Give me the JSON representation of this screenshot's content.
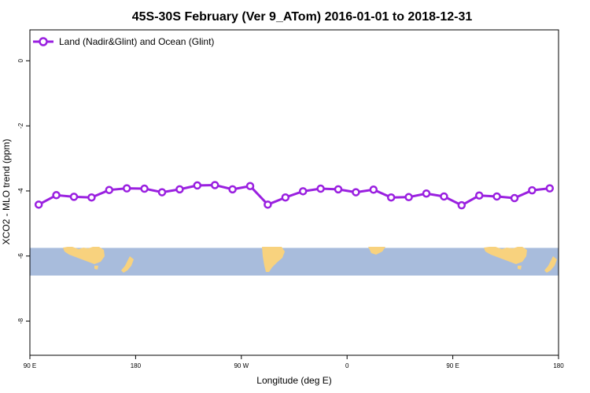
{
  "chart_data": {
    "type": "line",
    "title": "45S-30S February (Ver 9_ATom)   2016-01-01 to 2018-12-31",
    "xlabel": "Longitude (deg E)",
    "ylabel": "XCO2 - MLO trend (ppm)",
    "xlim": [
      90,
      540
    ],
    "ylim": [
      -9.05,
      0.95
    ],
    "x_ticks": [
      {
        "value": 90,
        "label": "90 E"
      },
      {
        "value": 180,
        "label": "180"
      },
      {
        "value": 270,
        "label": "90 W"
      },
      {
        "value": 360,
        "label": "0"
      },
      {
        "value": 450,
        "label": "90 E"
      },
      {
        "value": 540,
        "label": "180"
      }
    ],
    "y_ticks": [
      {
        "value": 0,
        "label": "0"
      },
      {
        "value": -2,
        "label": "-2"
      },
      {
        "value": -4,
        "label": "-4"
      },
      {
        "value": -6,
        "label": "-6"
      },
      {
        "value": -8,
        "label": "-8"
      }
    ],
    "legend_position": "top-left",
    "grid": false,
    "series": [
      {
        "name": "Land (Nadir&Glint) and Ocean (Glint)",
        "color": "#9a20e0",
        "x": [
          97.5,
          112.5,
          127.5,
          142.5,
          157.5,
          172.5,
          187.5,
          202.5,
          217.5,
          232.5,
          247.5,
          262.5,
          277.5,
          292.5,
          307.5,
          322.5,
          337.5,
          352.5,
          367.5,
          382.5,
          397.5,
          412.5,
          427.5,
          442.5,
          457.5,
          472.5,
          487.5,
          502.5,
          517.5,
          532.5
        ],
        "y": [
          -4.42,
          -4.13,
          -4.18,
          -4.2,
          -3.97,
          -3.92,
          -3.93,
          -4.04,
          -3.95,
          -3.83,
          -3.82,
          -3.95,
          -3.85,
          -4.42,
          -4.2,
          -4.01,
          -3.93,
          -3.95,
          -4.04,
          -3.96,
          -4.2,
          -4.19,
          -4.08,
          -4.17,
          -4.44,
          -4.14,
          -4.17,
          -4.22,
          -3.98,
          -3.92
        ]
      }
    ],
    "map_strip": {
      "y_top": -5.75,
      "y_bottom": -6.6,
      "ocean_color": "#a8bcdc",
      "land_color": "#f8d27e"
    }
  }
}
